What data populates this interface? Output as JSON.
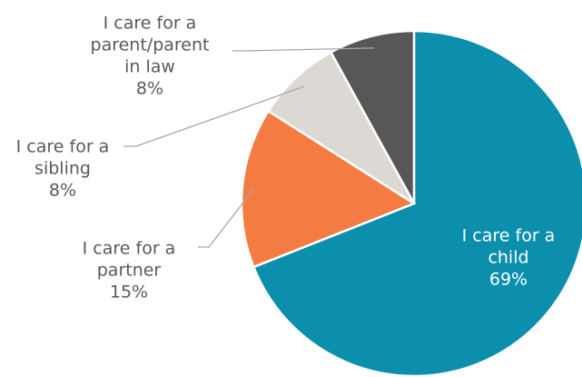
{
  "chart_data": {
    "type": "pie",
    "title": "",
    "legend": "none",
    "slices": [
      {
        "category": "I care for a child",
        "label_lines": [
          "I care for a",
          "child"
        ],
        "value": 69,
        "percent_label": "69%",
        "color": "#0b8fad"
      },
      {
        "category": "I care for a partner",
        "label_lines": [
          "I care for a",
          "partner"
        ],
        "value": 15,
        "percent_label": "15%",
        "color": "#f47c43"
      },
      {
        "category": "I care for a sibling",
        "label_lines": [
          "I care for a",
          "sibling"
        ],
        "value": 8,
        "percent_label": "8%",
        "color": "#dcd8d3"
      },
      {
        "category": "I care for a parent/parent in law",
        "label_lines": [
          "I care for a",
          "parent/parent",
          "in law"
        ],
        "value": 8,
        "percent_label": "8%",
        "color": "#575757"
      }
    ]
  }
}
